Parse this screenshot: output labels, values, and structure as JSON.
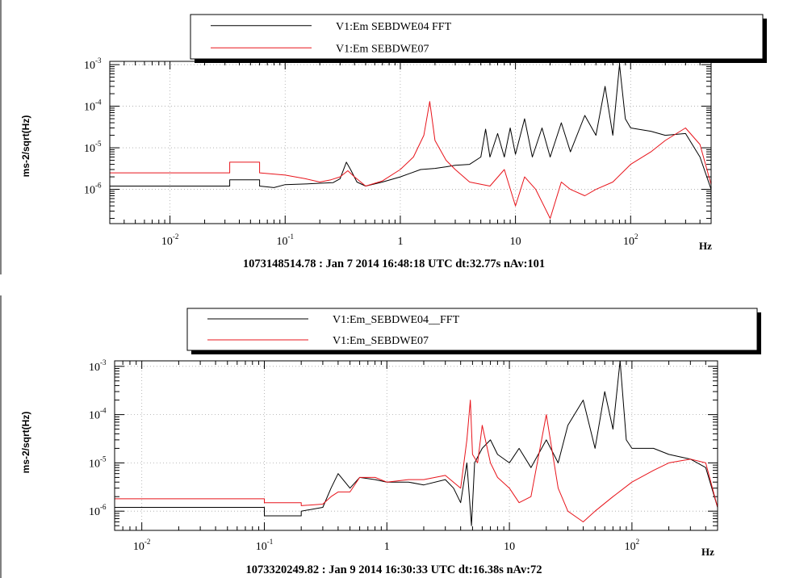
{
  "colors": {
    "series_black": "#000000",
    "series_red": "#e8141b",
    "grid": "#a8a8a8",
    "background": "#ffffff"
  },
  "chart_data": [
    {
      "type": "line",
      "xscale": "log",
      "yscale": "log",
      "grid": true,
      "legend_placement": "top-center",
      "xlim": [
        0.003,
        500
      ],
      "ylim": [
        1.5e-07,
        0.0012
      ],
      "ylabel": "ms-2/sqrt(Hz)",
      "xunit": "Hz",
      "caption": "1073148514.78 : Jan  7 2014 16:48:18 UTC dt:32.77s nAv:101",
      "xticks": [
        {
          "value": 0.01,
          "base": "10",
          "exp": "-2"
        },
        {
          "value": 0.1,
          "base": "10",
          "exp": "-1"
        },
        {
          "value": 1,
          "base": "1",
          "exp": ""
        },
        {
          "value": 10,
          "base": "10",
          "exp": ""
        },
        {
          "value": 100,
          "base": "10",
          "exp": "2"
        }
      ],
      "yticks": [
        {
          "value": 1e-06,
          "base": "10",
          "exp": "-6"
        },
        {
          "value": 1e-05,
          "base": "10",
          "exp": "-5"
        },
        {
          "value": 0.0001,
          "base": "10",
          "exp": "-4"
        },
        {
          "value": 0.001,
          "base": "10",
          "exp": "-3"
        }
      ],
      "series": [
        {
          "name": "V1:Em  SEBDWE04   FFT",
          "color": "#000000",
          "points": [
            [
              0.003,
              1.2e-06
            ],
            [
              0.033,
              1.2e-06
            ],
            [
              0.033,
              1.7e-06
            ],
            [
              0.06,
              1.7e-06
            ],
            [
              0.06,
              1.2e-06
            ],
            [
              0.08,
              1.1e-06
            ],
            [
              0.1,
              1.3e-06
            ],
            [
              0.15,
              1.35e-06
            ],
            [
              0.2,
              1.4e-06
            ],
            [
              0.26,
              1.45e-06
            ],
            [
              0.3,
              1.8e-06
            ],
            [
              0.34,
              4.5e-06
            ],
            [
              0.37,
              3e-06
            ],
            [
              0.42,
              1.5e-06
            ],
            [
              0.5,
              1.2e-06
            ],
            [
              0.7,
              1.5e-06
            ],
            [
              1.0,
              2e-06
            ],
            [
              1.5,
              3e-06
            ],
            [
              2.0,
              3.2e-06
            ],
            [
              2.5,
              3.5e-06
            ],
            [
              3.0,
              3.8e-06
            ],
            [
              4.0,
              4e-06
            ],
            [
              5.0,
              6e-06
            ],
            [
              5.5,
              2.8e-05
            ],
            [
              6.0,
              6e-06
            ],
            [
              7.0,
              2.2e-05
            ],
            [
              8.0,
              6e-06
            ],
            [
              9.0,
              3e-05
            ],
            [
              10,
              7e-06
            ],
            [
              12,
              5e-05
            ],
            [
              14,
              6e-06
            ],
            [
              17,
              3e-05
            ],
            [
              20,
              6e-06
            ],
            [
              25,
              4e-05
            ],
            [
              30,
              8e-06
            ],
            [
              40,
              6e-05
            ],
            [
              50,
              2e-05
            ],
            [
              60,
              0.0003
            ],
            [
              70,
              2e-05
            ],
            [
              80,
              0.001
            ],
            [
              90,
              5e-05
            ],
            [
              100,
              3e-05
            ],
            [
              150,
              2.5e-05
            ],
            [
              200,
              2e-05
            ],
            [
              300,
              2.2e-05
            ],
            [
              400,
              6e-06
            ],
            [
              500,
              1e-06
            ]
          ]
        },
        {
          "name": "V1:Em  SEBDWE07",
          "color": "#e8141b",
          "points": [
            [
              0.003,
              1.5e-07
            ],
            [
              0.003,
              2.5e-06
            ],
            [
              0.033,
              2.5e-06
            ],
            [
              0.033,
              4.5e-06
            ],
            [
              0.06,
              4.5e-06
            ],
            [
              0.06,
              2.5e-06
            ],
            [
              0.1,
              2.2e-06
            ],
            [
              0.15,
              1.8e-06
            ],
            [
              0.2,
              1.5e-06
            ],
            [
              0.25,
              1.7e-06
            ],
            [
              0.3,
              2e-06
            ],
            [
              0.35,
              2.8e-06
            ],
            [
              0.4,
              2e-06
            ],
            [
              0.5,
              1.2e-06
            ],
            [
              0.7,
              1.6e-06
            ],
            [
              1.0,
              3e-06
            ],
            [
              1.3,
              6e-06
            ],
            [
              1.6,
              2e-05
            ],
            [
              1.8,
              0.00013
            ],
            [
              2.0,
              1.5e-05
            ],
            [
              2.5,
              5e-06
            ],
            [
              3.0,
              3e-06
            ],
            [
              4.0,
              1.5e-06
            ],
            [
              6.0,
              1.2e-06
            ],
            [
              8.0,
              3e-06
            ],
            [
              10,
              4e-07
            ],
            [
              12,
              2e-06
            ],
            [
              15,
              1e-06
            ],
            [
              20,
              2e-07
            ],
            [
              25,
              1.5e-06
            ],
            [
              30,
              1e-06
            ],
            [
              40,
              7e-07
            ],
            [
              50,
              1e-06
            ],
            [
              70,
              1.5e-06
            ],
            [
              100,
              4e-06
            ],
            [
              150,
              8e-06
            ],
            [
              200,
              1.5e-05
            ],
            [
              300,
              3e-05
            ],
            [
              400,
              1.2e-05
            ],
            [
              500,
              1.3e-06
            ]
          ]
        }
      ]
    },
    {
      "type": "line",
      "xscale": "log",
      "yscale": "log",
      "grid": true,
      "legend_placement": "top-center",
      "xlim": [
        0.006,
        500
      ],
      "ylim": [
        4e-07,
        0.0013
      ],
      "ylabel": "ms-2/sqrt(Hz)",
      "xunit": "Hz",
      "caption": "1073320249.82 : Jan  9 2014 16:30:33 UTC dt:16.38s nAv:72",
      "xticks": [
        {
          "value": 0.01,
          "base": "10",
          "exp": "-2"
        },
        {
          "value": 0.1,
          "base": "10",
          "exp": "-1"
        },
        {
          "value": 1,
          "base": "1",
          "exp": ""
        },
        {
          "value": 10,
          "base": "10",
          "exp": ""
        },
        {
          "value": 100,
          "base": "10",
          "exp": "2"
        }
      ],
      "yticks": [
        {
          "value": 1e-06,
          "base": "10",
          "exp": "-6"
        },
        {
          "value": 1e-05,
          "base": "10",
          "exp": "-5"
        },
        {
          "value": 0.0001,
          "base": "10",
          "exp": "-4"
        },
        {
          "value": 0.001,
          "base": "10",
          "exp": "-3"
        }
      ],
      "series": [
        {
          "name": "V1:Em_SEBDWE04__FFT",
          "color": "#000000",
          "points": [
            [
              0.006,
              1.2e-06
            ],
            [
              0.1,
              1.2e-06
            ],
            [
              0.1,
              8e-07
            ],
            [
              0.2,
              8e-07
            ],
            [
              0.2,
              1e-06
            ],
            [
              0.3,
              1.2e-06
            ],
            [
              0.35,
              3e-06
            ],
            [
              0.4,
              6e-06
            ],
            [
              0.5,
              3e-06
            ],
            [
              0.6,
              5e-06
            ],
            [
              0.8,
              4.5e-06
            ],
            [
              1.0,
              4e-06
            ],
            [
              1.5,
              4e-06
            ],
            [
              2.0,
              3.5e-06
            ],
            [
              3.0,
              4.5e-06
            ],
            [
              3.5,
              3e-06
            ],
            [
              4.0,
              1.5e-06
            ],
            [
              4.5,
              1e-05
            ],
            [
              4.9,
              5e-07
            ],
            [
              5.2,
              1e-05
            ],
            [
              6.0,
              2e-05
            ],
            [
              7.0,
              3e-05
            ],
            [
              8.0,
              1.5e-05
            ],
            [
              10,
              1e-05
            ],
            [
              12,
              2e-05
            ],
            [
              15,
              8e-06
            ],
            [
              20,
              3e-05
            ],
            [
              25,
              1e-05
            ],
            [
              30,
              6e-05
            ],
            [
              40,
              0.0002
            ],
            [
              50,
              2e-05
            ],
            [
              60,
              0.0003
            ],
            [
              70,
              5e-05
            ],
            [
              80,
              0.0013
            ],
            [
              90,
              3e-05
            ],
            [
              100,
              2e-05
            ],
            [
              150,
              2e-05
            ],
            [
              200,
              1.5e-05
            ],
            [
              300,
              1.2e-05
            ],
            [
              400,
              8e-06
            ],
            [
              500,
              1.2e-06
            ]
          ]
        },
        {
          "name": "V1:Em_SEBDWE07",
          "color": "#e8141b",
          "points": [
            [
              0.006,
              1.8e-06
            ],
            [
              0.1,
              1.8e-06
            ],
            [
              0.1,
              1.5e-06
            ],
            [
              0.2,
              1.5e-06
            ],
            [
              0.2,
              1.3e-06
            ],
            [
              0.3,
              1.4e-06
            ],
            [
              0.35,
              2e-06
            ],
            [
              0.4,
              2.5e-06
            ],
            [
              0.5,
              2.5e-06
            ],
            [
              0.6,
              5e-06
            ],
            [
              0.8,
              5e-06
            ],
            [
              1.0,
              4e-06
            ],
            [
              1.5,
              4.5e-06
            ],
            [
              2.0,
              4.5e-06
            ],
            [
              3.0,
              5.5e-06
            ],
            [
              4.0,
              3e-06
            ],
            [
              4.5,
              3e-05
            ],
            [
              4.8,
              0.0002
            ],
            [
              5.0,
              1.5e-05
            ],
            [
              5.5,
              1e-05
            ],
            [
              6.0,
              6e-05
            ],
            [
              7.0,
              1e-05
            ],
            [
              8.0,
              5e-06
            ],
            [
              10,
              3e-06
            ],
            [
              12,
              1.5e-06
            ],
            [
              15,
              2e-06
            ],
            [
              20,
              0.0001
            ],
            [
              25,
              3e-06
            ],
            [
              30,
              1e-06
            ],
            [
              40,
              6e-07
            ],
            [
              50,
              1e-06
            ],
            [
              70,
              2e-06
            ],
            [
              100,
              4e-06
            ],
            [
              150,
              7e-06
            ],
            [
              200,
              1e-05
            ],
            [
              300,
              1.2e-05
            ],
            [
              400,
              1e-05
            ],
            [
              500,
              1.2e-06
            ]
          ]
        }
      ]
    }
  ]
}
